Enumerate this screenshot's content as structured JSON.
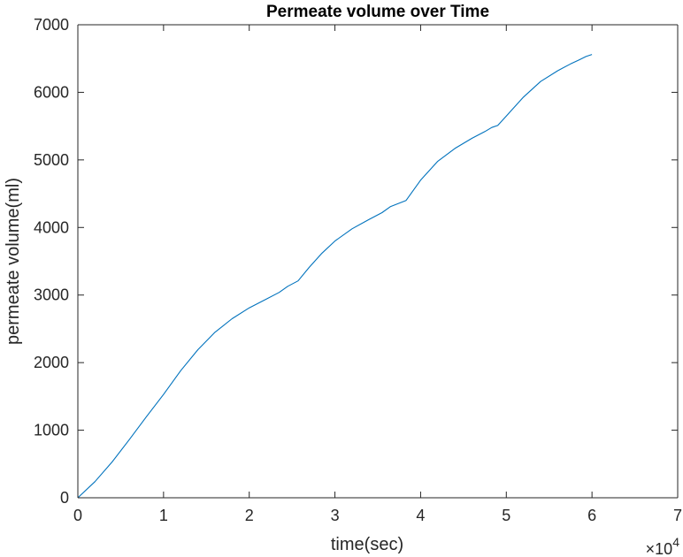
{
  "chart_data": {
    "type": "line",
    "title": "Permeate volume over Time",
    "xlabel": "time(sec)",
    "ylabel": "permeate volume(ml)",
    "xlim": [
      0,
      70000
    ],
    "ylim": [
      0,
      7000
    ],
    "x_ticks": [
      0,
      10000,
      20000,
      30000,
      40000,
      50000,
      60000,
      70000
    ],
    "x_tick_labels": [
      "0",
      "1",
      "2",
      "3",
      "4",
      "5",
      "6",
      "7"
    ],
    "x_exponent_label": "×10",
    "x_exponent_power": "4",
    "y_ticks": [
      0,
      1000,
      2000,
      3000,
      4000,
      5000,
      6000,
      7000
    ],
    "y_tick_labels": [
      "0",
      "1000",
      "2000",
      "3000",
      "4000",
      "5000",
      "6000",
      "7000"
    ],
    "grid": false,
    "box": true,
    "series": [
      {
        "color": "#0072BD",
        "x": [
          0,
          2000,
          4000,
          6000,
          8000,
          10000,
          12000,
          14000,
          16000,
          18000,
          20000,
          22000,
          23500,
          24500,
          25700,
          27000,
          28500,
          30000,
          32000,
          34000,
          35500,
          36500,
          38300,
          40000,
          42000,
          44000,
          46000,
          47500,
          48300,
          49000,
          50000,
          52000,
          54000,
          56000,
          57500,
          58500,
          59300,
          60000
        ],
        "y": [
          0,
          240,
          530,
          860,
          1200,
          1530,
          1880,
          2190,
          2450,
          2650,
          2810,
          2940,
          3040,
          3130,
          3210,
          3410,
          3620,
          3800,
          3980,
          4120,
          4220,
          4310,
          4400,
          4700,
          4980,
          5170,
          5320,
          5420,
          5480,
          5510,
          5650,
          5930,
          6160,
          6320,
          6420,
          6480,
          6530,
          6560
        ]
      }
    ]
  }
}
